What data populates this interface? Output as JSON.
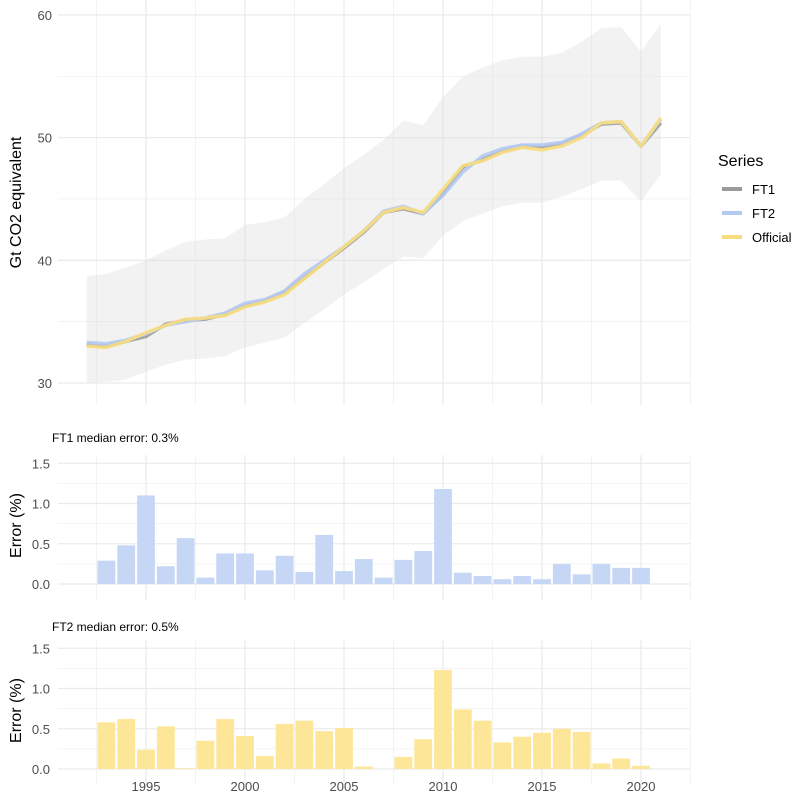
{
  "chart_data": [
    {
      "type": "line",
      "ylabel": "Gt CO2 equivalent",
      "ylim": [
        28,
        61.3
      ],
      "yticks": [
        30,
        40,
        50,
        60
      ],
      "xlim": [
        1990.8,
        2022.7
      ],
      "xticks": [
        1995,
        2000,
        2005,
        2010,
        2015,
        2020
      ],
      "grid": true,
      "legend": {
        "title": "Series",
        "position": "right",
        "entries": [
          "FT1",
          "FT2",
          "Official"
        ]
      },
      "x": [
        1992,
        1993,
        1994,
        1995,
        1996,
        1997,
        1998,
        1999,
        2000,
        2001,
        2002,
        2003,
        2004,
        2005,
        2006,
        2007,
        2008,
        2009,
        2010,
        2011,
        2012,
        2013,
        2014,
        2015,
        2016,
        2017,
        2018,
        2019,
        2020,
        2021
      ],
      "band": {
        "upper": [
          38.7,
          38.9,
          39.4,
          40.0,
          40.8,
          41.5,
          41.7,
          41.8,
          42.9,
          43.1,
          43.5,
          45.0,
          46.2,
          47.5,
          48.6,
          49.8,
          51.4,
          51.0,
          53.3,
          55.0,
          55.7,
          56.3,
          56.6,
          56.6,
          56.9,
          57.8,
          58.9,
          59.0,
          57.0,
          59.3
        ],
        "lower": [
          30.0,
          30.1,
          30.3,
          30.9,
          31.5,
          31.9,
          32.0,
          32.2,
          32.9,
          33.3,
          33.7,
          34.9,
          36.0,
          37.2,
          38.2,
          39.3,
          40.3,
          40.2,
          42.0,
          43.2,
          43.8,
          44.4,
          44.7,
          44.7,
          45.2,
          45.8,
          46.5,
          46.5,
          44.8,
          47.0
        ]
      },
      "series": [
        {
          "name": "FT1",
          "color": "#9a9a9a",
          "values": [
            33.1,
            33.0,
            33.4,
            33.8,
            34.8,
            35.1,
            35.2,
            35.6,
            36.3,
            36.7,
            37.4,
            38.6,
            39.8,
            41.0,
            42.3,
            43.9,
            44.2,
            43.8,
            45.4,
            47.6,
            48.2,
            48.9,
            49.3,
            49.2,
            49.5,
            50.2,
            51.1,
            51.2,
            49.3,
            51.2
          ]
        },
        {
          "name": "FT2",
          "color": "#b2c9f2",
          "values": [
            33.3,
            33.2,
            33.5,
            34.0,
            34.7,
            35.0,
            35.3,
            35.7,
            36.5,
            36.8,
            37.5,
            38.9,
            40.0,
            41.1,
            42.4,
            44.0,
            44.4,
            43.8,
            45.3,
            47.2,
            48.5,
            49.1,
            49.4,
            49.4,
            49.6,
            50.3,
            51.2,
            51.3,
            49.3,
            51.5
          ]
        },
        {
          "name": "Official",
          "color": "#f8dd80",
          "values": [
            33.0,
            32.9,
            33.4,
            34.1,
            34.7,
            35.2,
            35.3,
            35.5,
            36.2,
            36.6,
            37.2,
            38.5,
            39.8,
            41.1,
            42.4,
            43.9,
            44.3,
            43.9,
            45.8,
            47.7,
            48.1,
            48.8,
            49.2,
            49.0,
            49.3,
            50.0,
            51.2,
            51.3,
            49.3,
            51.6
          ]
        }
      ]
    },
    {
      "type": "bar",
      "title": "FT1 median error: 0.3%",
      "ylabel": "Error (%)",
      "ylim": [
        0,
        1.6
      ],
      "yticks": [
        "0.0",
        "0.5",
        "1.0",
        "1.5"
      ],
      "color": "#c3d5f5",
      "x": [
        1993,
        1994,
        1995,
        1996,
        1997,
        1998,
        1999,
        2000,
        2001,
        2002,
        2003,
        2004,
        2005,
        2006,
        2007,
        2008,
        2009,
        2010,
        2011,
        2012,
        2013,
        2014,
        2015,
        2016,
        2017,
        2018,
        2019,
        2020
      ],
      "values": [
        0.29,
        0.48,
        1.1,
        0.22,
        0.57,
        0.08,
        0.38,
        0.38,
        0.17,
        0.35,
        0.15,
        0.61,
        0.16,
        0.31,
        0.08,
        0.3,
        0.41,
        1.18,
        0.14,
        0.1,
        0.06,
        0.1,
        0.06,
        0.25,
        0.12,
        0.25,
        0.2,
        0.2
      ]
    },
    {
      "type": "bar",
      "title": "FT2 median error: 0.5%",
      "ylabel": "Error (%)",
      "ylim": [
        0,
        1.6
      ],
      "yticks": [
        "0.0",
        "0.5",
        "1.0",
        "1.5"
      ],
      "xticks": [
        1995,
        2000,
        2005,
        2010,
        2015,
        2020
      ],
      "color": "#fde592",
      "x": [
        1993,
        1994,
        1995,
        1996,
        1997,
        1998,
        1999,
        2000,
        2001,
        2002,
        2003,
        2004,
        2005,
        2006,
        2007,
        2008,
        2009,
        2010,
        2011,
        2012,
        2013,
        2014,
        2015,
        2016,
        2017,
        2018,
        2019,
        2020
      ],
      "values": [
        0.58,
        0.62,
        0.24,
        0.53,
        0.01,
        0.35,
        0.62,
        0.41,
        0.16,
        0.56,
        0.6,
        0.47,
        0.51,
        0.03,
        0,
        0.15,
        0.37,
        1.23,
        0.74,
        0.6,
        0.33,
        0.4,
        0.45,
        0.5,
        0.46,
        0.07,
        0.13,
        0.04
      ]
    }
  ]
}
